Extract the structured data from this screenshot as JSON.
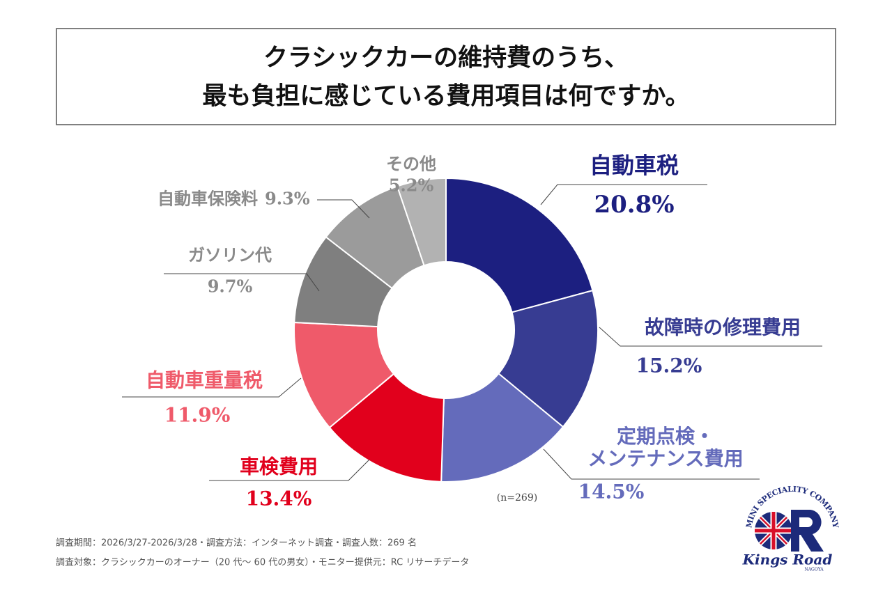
{
  "chart_data": {
    "type": "donut",
    "title": [
      "クラシックカーの維持費のうち、",
      "最も負担に感じている費用項目は何ですか。"
    ],
    "categories": [
      "自動車税",
      "故障時の修理費用",
      "定期点検・メンテナンス費用",
      "車検費用",
      "自動車重量税",
      "ガソリン代",
      "自動車保険料",
      "その他"
    ],
    "values": [
      20.8,
      15.2,
      14.5,
      13.4,
      11.9,
      9.7,
      9.3,
      5.2
    ],
    "value_labels": [
      "20.8%",
      "15.2%",
      "14.5%",
      "13.4%",
      "11.9%",
      "9.7%",
      "9.3%",
      "5.2%"
    ],
    "colors": [
      "#1c1f80",
      "#373c92",
      "#646bbb",
      "#e1001c",
      "#ef5a6a",
      "#7f7f7f",
      "#9b9b9b",
      "#b2b2b2"
    ],
    "label_colors": [
      "#1c1f80",
      "#373c92",
      "#646bbb",
      "#e1001c",
      "#ef5a6a",
      "#8a8a8a",
      "#8a8a8a",
      "#8a8a8a"
    ],
    "note": "(n=269)"
  },
  "footer": [
    "調査期間：2026/3/27-2026/3/28・調査方法：インターネット調査・調査人数：269 名",
    "調査対象：クラシックカーのオーナー（20 代〜 60 代の男女）・モニター提供元：RC リサーチデータ"
  ],
  "logo": {
    "arc": "MINI SPECIALITY COMPANY",
    "name": "Kings Road",
    "city": "NAGOYA"
  }
}
